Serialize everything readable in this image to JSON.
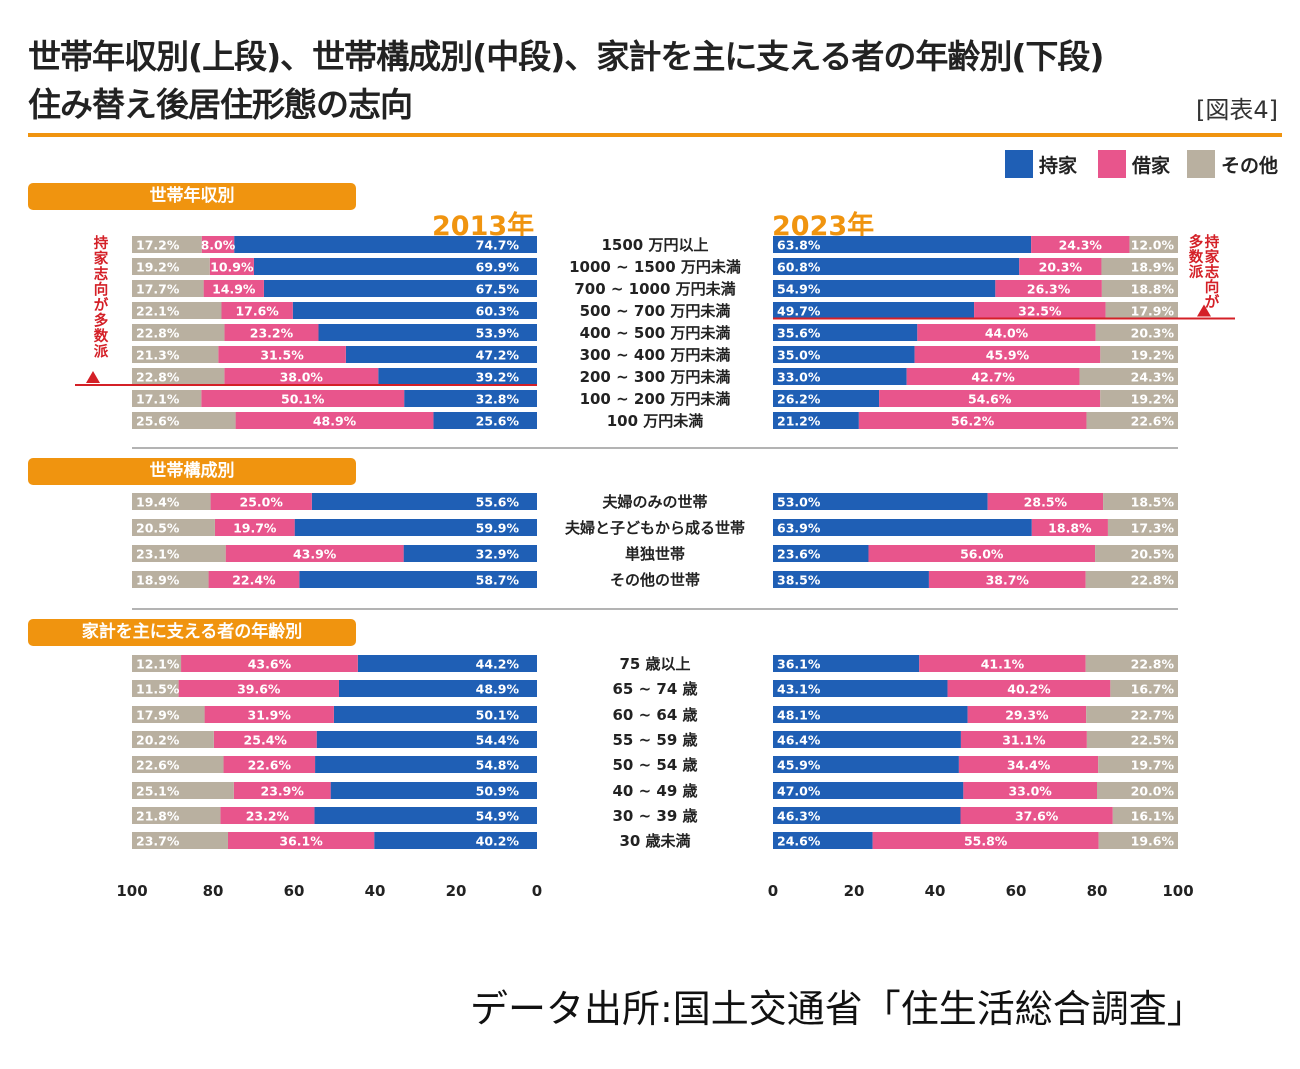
{
  "header": {
    "title_line1": "世帯年収別(上段)、世帯構成別(中段)、家計を主に支える者の年齢別(下段)",
    "title_line2": "住み替え後居住形態の志向",
    "figure_label": "[図表4]"
  },
  "legend": [
    {
      "label": "持家",
      "color": "#1f5fb5"
    },
    {
      "label": "借家",
      "color": "#e8558c"
    },
    {
      "label": "その他",
      "color": "#b9b0a0"
    }
  ],
  "colors": {
    "accent": "#f0940f",
    "own": "#1f5fb5",
    "rent": "#e8558c",
    "other": "#b9b0a0",
    "marker": "#d42027"
  },
  "year_labels": {
    "left": "2013年",
    "right": "2023年"
  },
  "annotation": {
    "left": "持家志向が多数派",
    "right": "持家志向が多数派"
  },
  "source": "データ出所:国土交通省「住生活総合調査」",
  "chart_data": {
    "type": "bar",
    "stacked": true,
    "orientation": "horizontal",
    "series_names": [
      "持家",
      "借家",
      "その他"
    ],
    "left_axis_ticks": [
      "100",
      "80",
      "60",
      "40",
      "20",
      "0"
    ],
    "right_axis_ticks": [
      "0",
      "20",
      "40",
      "60",
      "80",
      "100"
    ],
    "sections": [
      {
        "name": "世帯年収別",
        "categories": [
          "1500 万円以上",
          "1000 ~ 1500 万円未満",
          "700 ~ 1000 万円未満",
          "500 ~ 700 万円未満",
          "400 ~ 500 万円未満",
          "300 ~ 400 万円未満",
          "200 ~ 300 万円未満",
          "100 ~ 200 万円未満",
          "100 万円未満"
        ],
        "y2013": {
          "持家": [
            "74.7%",
            "69.9%",
            "67.5%",
            "60.3%",
            "53.9%",
            "47.2%",
            "39.2%",
            "32.8%",
            "25.6%"
          ],
          "借家": [
            "8.0%",
            "10.9%",
            "14.9%",
            "17.6%",
            "23.2%",
            "31.5%",
            "38.0%",
            "50.1%",
            "48.9%"
          ],
          "その他": [
            "17.2%",
            "19.2%",
            "17.7%",
            "22.1%",
            "22.8%",
            "21.3%",
            "22.8%",
            "17.1%",
            "25.6%"
          ]
        },
        "y2023": {
          "持家": [
            "63.8%",
            "60.8%",
            "54.9%",
            "49.7%",
            "35.6%",
            "35.0%",
            "33.0%",
            "26.2%",
            "21.2%"
          ],
          "借家": [
            "24.3%",
            "20.3%",
            "26.3%",
            "32.5%",
            "44.0%",
            "45.9%",
            "42.7%",
            "54.6%",
            "56.2%"
          ],
          "その他": [
            "12.0%",
            "18.9%",
            "18.8%",
            "17.9%",
            "20.3%",
            "19.2%",
            "24.3%",
            "19.2%",
            "22.6%"
          ]
        }
      },
      {
        "name": "世帯構成別",
        "categories": [
          "夫婦のみの世帯",
          "夫婦と子どもから成る世帯",
          "単独世帯",
          "その他の世帯"
        ],
        "y2013": {
          "持家": [
            "55.6%",
            "59.9%",
            "32.9%",
            "58.7%"
          ],
          "借家": [
            "25.0%",
            "19.7%",
            "43.9%",
            "22.4%"
          ],
          "その他": [
            "19.4%",
            "20.5%",
            "23.1%",
            "18.9%"
          ]
        },
        "y2023": {
          "持家": [
            "53.0%",
            "63.9%",
            "23.6%",
            "38.5%"
          ],
          "借家": [
            "28.5%",
            "18.8%",
            "56.0%",
            "38.7%"
          ],
          "その他": [
            "18.5%",
            "17.3%",
            "20.5%",
            "22.8%"
          ]
        }
      },
      {
        "name": "家計を主に支える者の年齢別",
        "categories": [
          "75 歳以上",
          "65 ~ 74 歳",
          "60 ~ 64 歳",
          "55 ~ 59 歳",
          "50 ~ 54 歳",
          "40 ~ 49 歳",
          "30 ~ 39 歳",
          "30 歳未満"
        ],
        "y2013": {
          "持家": [
            "44.2%",
            "48.9%",
            "50.1%",
            "54.4%",
            "54.8%",
            "50.9%",
            "54.9%",
            "40.2%"
          ],
          "借家": [
            "43.6%",
            "39.6%",
            "31.9%",
            "25.4%",
            "22.6%",
            "23.9%",
            "23.2%",
            "36.1%"
          ],
          "その他": [
            "12.1%",
            "11.5%",
            "17.9%",
            "20.2%",
            "22.6%",
            "25.1%",
            "21.8%",
            "23.7%"
          ]
        },
        "y2023": {
          "持家": [
            "36.1%",
            "43.1%",
            "48.1%",
            "46.4%",
            "45.9%",
            "47.0%",
            "46.3%",
            "24.6%"
          ],
          "借家": [
            "41.1%",
            "40.2%",
            "29.3%",
            "31.1%",
            "34.4%",
            "33.0%",
            "37.6%",
            "55.8%"
          ],
          "その他": [
            "22.8%",
            "16.7%",
            "22.7%",
            "22.5%",
            "19.7%",
            "20.0%",
            "16.1%",
            "19.6%"
          ]
        }
      }
    ]
  }
}
